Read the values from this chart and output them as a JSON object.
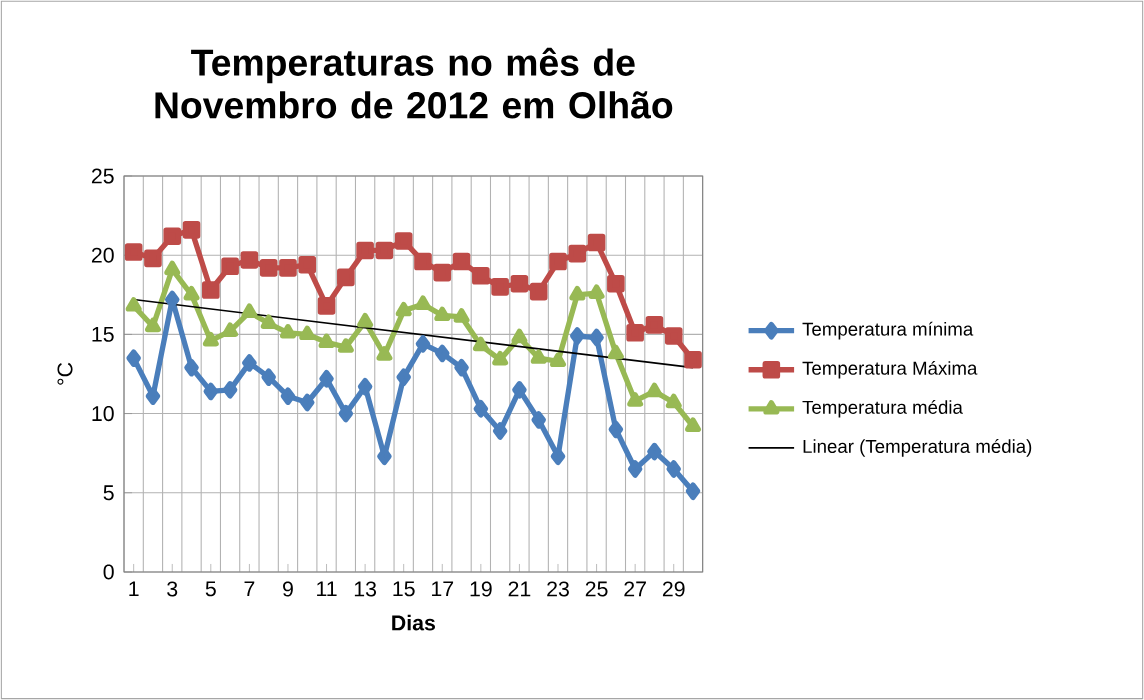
{
  "chart_data": {
    "type": "line",
    "title": "Temperaturas no mês de Novembro de 2012 em Olhão",
    "xlabel": "Dias",
    "ylabel": "°C",
    "x": [
      1,
      2,
      3,
      4,
      5,
      6,
      7,
      8,
      9,
      10,
      11,
      12,
      13,
      14,
      15,
      16,
      17,
      18,
      19,
      20,
      21,
      22,
      23,
      24,
      25,
      26,
      27,
      28,
      29,
      30
    ],
    "xlim": [
      0.5,
      30.5
    ],
    "xticks": [
      1,
      3,
      5,
      7,
      9,
      11,
      13,
      15,
      17,
      19,
      21,
      23,
      25,
      27,
      29
    ],
    "ylim": [
      0,
      25
    ],
    "yticks": [
      0,
      5,
      10,
      15,
      20,
      25
    ],
    "grid": true,
    "legend": "right",
    "series": [
      {
        "name": "Temperatura mínima",
        "color": "#4a7ebb",
        "marker": "diamond",
        "values": [
          13.5,
          11.1,
          17.2,
          12.9,
          11.4,
          11.5,
          13.2,
          12.3,
          11.1,
          10.7,
          12.2,
          10.0,
          11.7,
          7.3,
          12.3,
          14.4,
          13.8,
          12.9,
          10.3,
          8.9,
          11.5,
          9.6,
          7.3,
          14.9,
          14.8,
          9.0,
          6.5,
          7.6,
          6.5,
          5.1
        ]
      },
      {
        "name": "Temperatura Máxima",
        "color": "#be4b48",
        "marker": "square",
        "values": [
          20.2,
          19.8,
          21.2,
          21.6,
          17.8,
          19.3,
          19.7,
          19.2,
          19.2,
          19.4,
          16.8,
          18.6,
          20.3,
          20.3,
          20.9,
          19.6,
          18.9,
          19.6,
          18.7,
          18.0,
          18.2,
          17.7,
          19.6,
          20.1,
          20.8,
          18.2,
          15.1,
          15.6,
          14.9,
          13.4
        ]
      },
      {
        "name": "Temperatura média",
        "color": "#98b954",
        "marker": "triangle",
        "values": [
          16.8,
          15.5,
          19.1,
          17.5,
          14.6,
          15.2,
          16.4,
          15.7,
          15.1,
          15.0,
          14.5,
          14.2,
          15.8,
          13.7,
          16.5,
          16.9,
          16.2,
          16.1,
          14.3,
          13.4,
          14.8,
          13.5,
          13.3,
          17.5,
          17.6,
          13.8,
          10.8,
          11.4,
          10.7,
          9.2
        ]
      },
      {
        "name": "Linear (Temperatura média)",
        "type": "line",
        "color": "#000000",
        "marker": "none",
        "x": [
          1,
          30
        ],
        "values": [
          17.2,
          12.9
        ]
      }
    ]
  }
}
